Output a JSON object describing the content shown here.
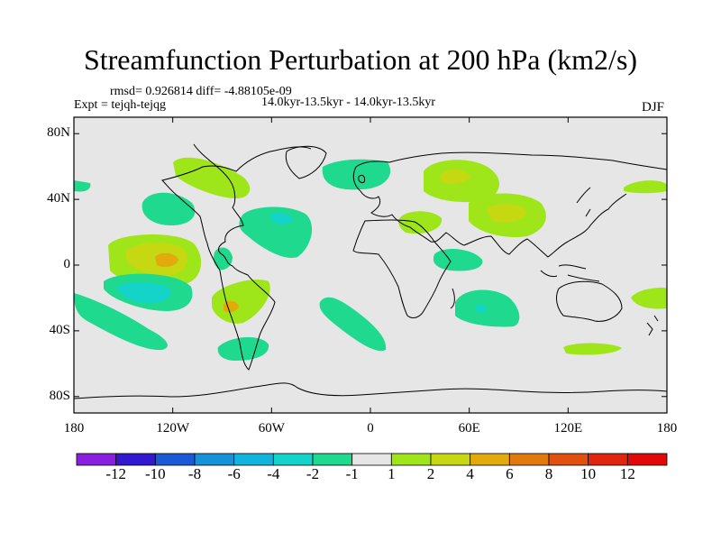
{
  "title": "Streamfunction Perturbation at 200 hPa (km2/s)",
  "stats": "rmsd= 0.926814 diff= -4.88105e-09",
  "experiment": "Expt = tejqh-tejqg",
  "period": "14.0kyr-13.5kyr - 14.0kyr-13.5kyr",
  "season": "DJF",
  "axes": {
    "lat_ticks": [
      {
        "label": "80N",
        "lat": 80
      },
      {
        "label": "40N",
        "lat": 40
      },
      {
        "label": "0",
        "lat": 0
      },
      {
        "label": "40S",
        "lat": -40
      },
      {
        "label": "80S",
        "lat": -80
      }
    ],
    "lon_ticks": [
      {
        "label": "180",
        "lon": -180
      },
      {
        "label": "120W",
        "lon": -120
      },
      {
        "label": "60W",
        "lon": -60
      },
      {
        "label": "0",
        "lon": 0
      },
      {
        "label": "60E",
        "lon": 60
      },
      {
        "label": "120E",
        "lon": 120
      },
      {
        "label": "180",
        "lon": 180
      }
    ]
  },
  "colorbar": {
    "labels": [
      "-12",
      "-10",
      "-8",
      "-6",
      "-4",
      "-2",
      "-1",
      "1",
      "2",
      "4",
      "6",
      "8",
      "10",
      "12"
    ],
    "colors": [
      "#8a1fe0",
      "#3218cf",
      "#1a5ad6",
      "#1592d8",
      "#10b4dc",
      "#14d3c8",
      "#1ed98e",
      "#e6e6e6",
      "#9ee61a",
      "#c6d812",
      "#e2aa0a",
      "#e07a0c",
      "#e0500f",
      "#e0260f",
      "#e00808"
    ]
  },
  "colors": {
    "background": "#e6e6e6",
    "coast": "#000000"
  }
}
